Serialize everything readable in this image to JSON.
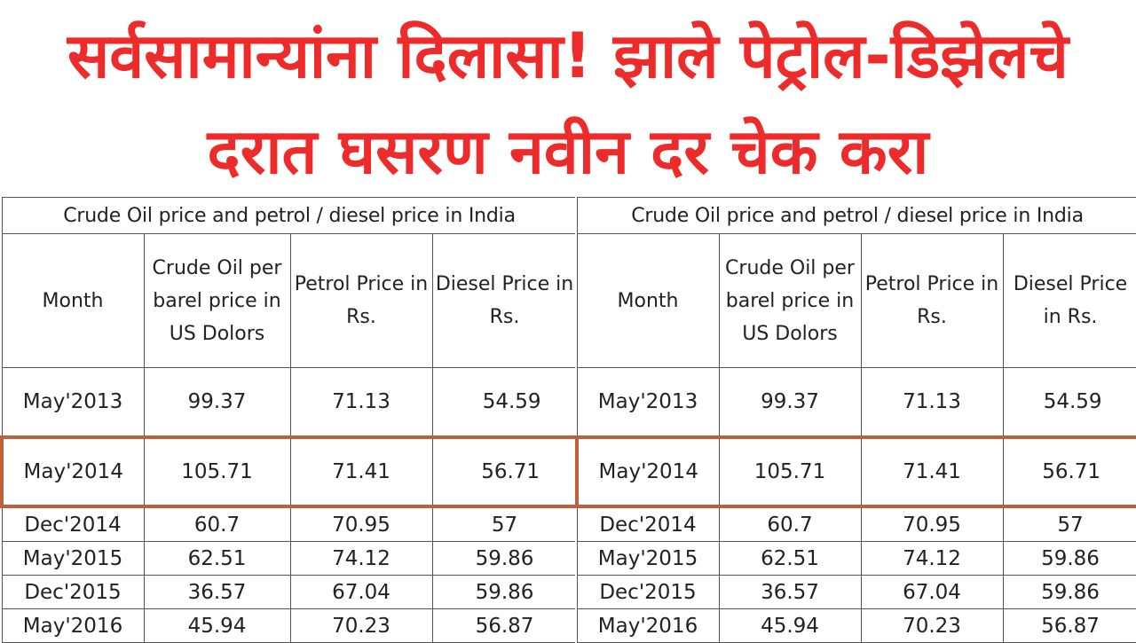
{
  "headline": {
    "line1": "सर्वसामान्यांना दिलासा! झाले पेट्रोल-डिझेलचे",
    "line2": "दरात घसरण नवीन दर चेक करा",
    "color": "#ee2b2b"
  },
  "table": {
    "caption": "Crude Oil price and petrol / diesel price in India",
    "headers": [
      "Month",
      "Crude Oil per barel price in US Dolors",
      "Petrol Price in Rs.",
      "Diesel Price in Rs."
    ],
    "rows": [
      [
        "May'2013",
        "99.37",
        "71.13",
        "54.59"
      ],
      [
        "May'2014",
        "105.71",
        "71.41",
        "56.71"
      ],
      [
        "Dec'2014",
        "60.7",
        "70.95",
        "57"
      ],
      [
        "May'2015",
        "62.51",
        "74.12",
        "59.86"
      ],
      [
        "Dec'2015",
        "36.57",
        "67.04",
        "59.86"
      ],
      [
        "May'2016",
        "45.94",
        "70.23",
        "56.87"
      ]
    ],
    "highlight_color": "#c0603a"
  }
}
